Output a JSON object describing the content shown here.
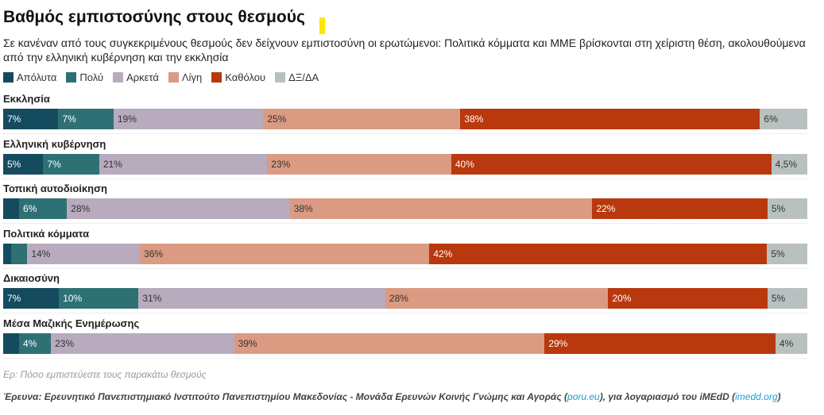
{
  "title": "Βαθμός εμπιστοσύνης στους θεσμούς",
  "subtitle": "Σε κανέναν από τους συγκεκριμένους θεσμούς δεν δείχνουν εμπιστοσύνη οι ερωτώμενοι: Πολιτικά κόμματα και ΜΜΕ βρίσκονται στη χείριστη θέση, ακολουθούμενα από την ελληνική κυβέρνηση και την εκκλησία",
  "accent_color": "#ffe600",
  "chart_data": {
    "type": "bar",
    "orientation": "horizontal-stacked",
    "unit": "%",
    "legend_position": "top-left",
    "categories": [
      "Εκκλησία",
      "Ελληνική κυβέρνηση",
      "Τοπική αυτοδιοίκηση",
      "Πολιτικά κόμματα",
      "Δικαιοσύνη",
      "Μέσα Μαζικής Ενημέρωσης"
    ],
    "series": [
      {
        "name": "Απόλυτα",
        "color": "#144b5f",
        "text_color": "#ffffff",
        "values": [
          7,
          5,
          2,
          1,
          7,
          2
        ],
        "labels": [
          "7%",
          "5%",
          "",
          "",
          "7%",
          ""
        ]
      },
      {
        "name": "Πολύ",
        "color": "#2e7174",
        "text_color": "#ffffff",
        "values": [
          7,
          7,
          6,
          2,
          10,
          4
        ],
        "labels": [
          "7%",
          "7%",
          "6%",
          "",
          "10%",
          "4%"
        ]
      },
      {
        "name": "Αρκετά",
        "color": "#b7abbd",
        "text_color": "#333333",
        "values": [
          19,
          21,
          28,
          14,
          31,
          23
        ],
        "labels": [
          "19%",
          "21%",
          "28%",
          "14%",
          "31%",
          "23%"
        ]
      },
      {
        "name": "Λίγη",
        "color": "#db9a82",
        "text_color": "#333333",
        "values": [
          25,
          23,
          38,
          36,
          28,
          39
        ],
        "labels": [
          "25%",
          "23%",
          "38%",
          "36%",
          "28%",
          "39%"
        ]
      },
      {
        "name": "Καθόλου",
        "color": "#b9380e",
        "text_color": "#ffffff",
        "values": [
          38,
          40,
          22,
          42,
          20,
          29
        ],
        "labels": [
          "38%",
          "40%",
          "22%",
          "42%",
          "20%",
          "29%"
        ]
      },
      {
        "name": "ΔΞ/ΔΑ",
        "color": "#b9c1c0",
        "text_color": "#333333",
        "values": [
          6,
          4.5,
          5,
          5,
          5,
          4
        ],
        "labels": [
          "6%",
          "4,5%",
          "5%",
          "5%",
          "5%",
          "4%"
        ]
      }
    ]
  },
  "footer": {
    "question": "Ερ: Πόσο εμπιστεύεστε τους παρακάτω θεσμούς",
    "source_prefix": "Έρευνα: Ερευνητικό Πανεπιστημιακό Ινστιτούτο Πανεπιστημίου Μακεδονίας - Μονάδα Ερευνών Κοινής Γνώμης και Αγοράς (",
    "source_link1": "poru.eu",
    "source_middle": "), για λογαριασμό του iMEdD (",
    "source_link2": "imedd.org",
    "source_suffix": ")"
  }
}
